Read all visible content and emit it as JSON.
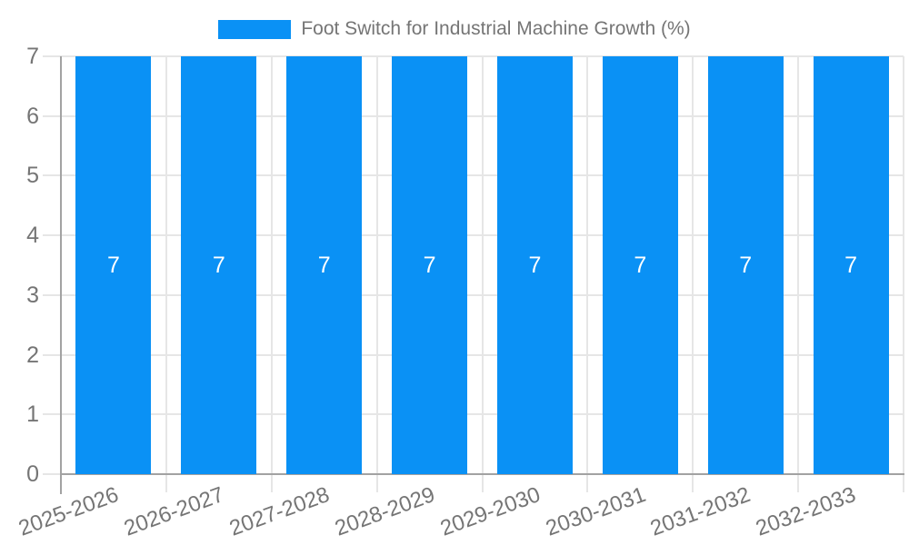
{
  "legend": {
    "label": "Foot Switch for Industrial Machine Growth (%)"
  },
  "chart_data": {
    "type": "bar",
    "title": "Foot Switch for Industrial Machine Growth (%)",
    "categories": [
      "2025-2026",
      "2026-2027",
      "2027-2028",
      "2028-2029",
      "2029-2030",
      "2030-2031",
      "2031-2032",
      "2032-2033"
    ],
    "series": [
      {
        "name": "Foot Switch for Industrial Machine Growth (%)",
        "values": [
          7,
          7,
          7,
          7,
          7,
          7,
          7,
          7
        ]
      }
    ],
    "bar_value_labels": [
      "7",
      "7",
      "7",
      "7",
      "7",
      "7",
      "7",
      "7"
    ],
    "xlabel": "",
    "ylabel": "",
    "ylim": [
      0,
      7
    ],
    "y_ticks": [
      0,
      1,
      2,
      3,
      4,
      5,
      6,
      7
    ],
    "grid": true,
    "legend_position": "top-center",
    "x_label_rotation_deg": -20,
    "colors": {
      "bar": "#0A91F5",
      "bar_label_text": "#FFFFFF",
      "grid_line": "#E6E6E6",
      "axis_line": "#A2A2A2",
      "tick_text": "#757575",
      "background": "#FFFFFF"
    }
  }
}
